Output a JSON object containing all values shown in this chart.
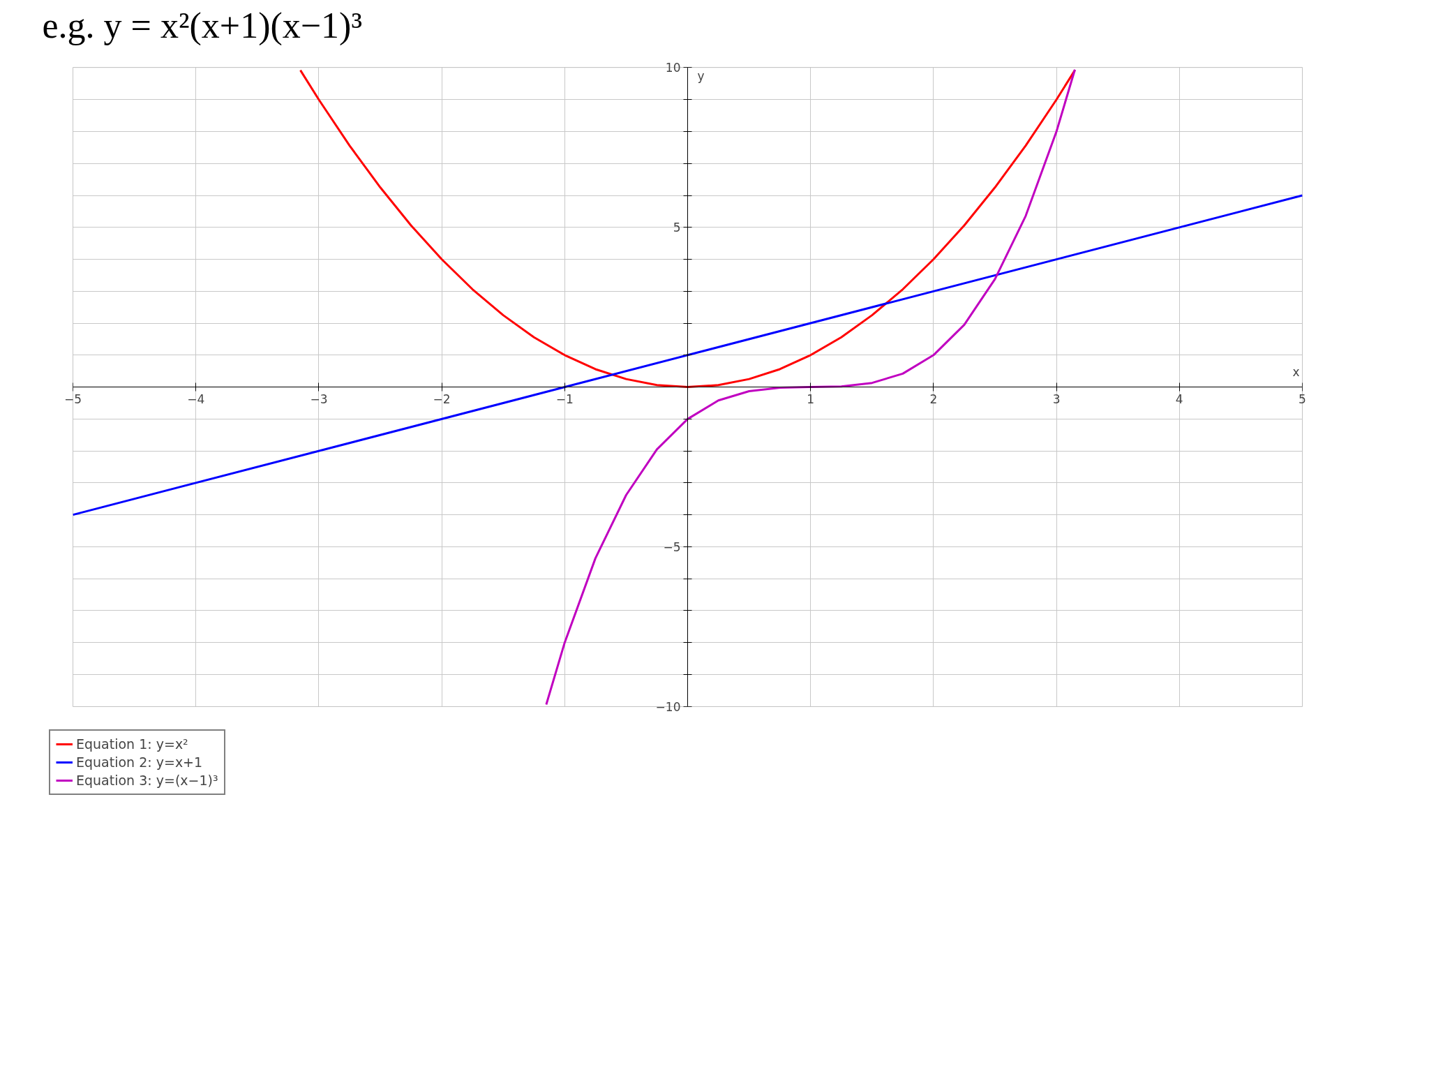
{
  "chart_data": {
    "type": "line",
    "title": "e.g. y = x²(x+1)(x−1)³",
    "xlabel": "x",
    "ylabel": "y",
    "xlim": [
      -5,
      5
    ],
    "ylim": [
      -10,
      10
    ],
    "xticks": [
      {
        "value": -5,
        "label": "−5"
      },
      {
        "value": -4,
        "label": "−4"
      },
      {
        "value": -3,
        "label": "−3"
      },
      {
        "value": -2,
        "label": "−2"
      },
      {
        "value": -1,
        "label": "−1"
      },
      {
        "value": 0,
        "label": null
      },
      1,
      2,
      3,
      4,
      5
    ],
    "yticks": [
      {
        "value": -10,
        "label": "−10"
      },
      {
        "value": -9,
        "label": null
      },
      {
        "value": -8,
        "label": null
      },
      {
        "value": -7,
        "label": null
      },
      {
        "value": -6,
        "label": null
      },
      {
        "value": -5,
        "label": "−5"
      },
      {
        "value": -4,
        "label": null
      },
      {
        "value": -3,
        "label": null
      },
      {
        "value": -2,
        "label": null
      },
      {
        "value": -1,
        "label": null
      },
      {
        "value": 0,
        "label": null
      },
      {
        "value": 1,
        "label": null
      },
      {
        "value": 2,
        "label": null
      },
      {
        "value": 3,
        "label": null
      },
      {
        "value": 4,
        "label": null
      },
      5,
      {
        "value": 6,
        "label": null
      },
      {
        "value": 7,
        "label": null
      },
      {
        "value": 8,
        "label": null
      },
      {
        "value": 9,
        "label": null
      },
      10
    ],
    "grid": true,
    "legend": "bottom",
    "line_style": "solid",
    "series": [
      {
        "name": "Equation 1: y=x²",
        "color": "#ff0000",
        "x": [
          -3.15,
          -3,
          -2.75,
          -2.5,
          -2.25,
          -2,
          -1.75,
          -1.5,
          -1.25,
          -1,
          -0.75,
          -0.5,
          -0.25,
          0,
          0.25,
          0.5,
          0.75,
          1,
          1.25,
          1.5,
          1.75,
          2,
          2.25,
          2.5,
          2.75,
          3,
          3.15
        ],
        "values": [
          9.92,
          9,
          7.56,
          6.25,
          5.06,
          4,
          3.06,
          2.25,
          1.56,
          1,
          0.56,
          0.25,
          0.06,
          0,
          0.06,
          0.25,
          0.56,
          1,
          1.56,
          2.25,
          3.06,
          4,
          5.06,
          6.25,
          7.56,
          9,
          9.92
        ]
      },
      {
        "name": "Equation 2: y=x+1",
        "color": "#0000ff",
        "x": [
          -5,
          0,
          5
        ],
        "values": [
          -4,
          1,
          6
        ]
      },
      {
        "name": "Equation 3: y=(x−1)³",
        "color": "#c000c0",
        "x": [
          -1.15,
          -1,
          -0.75,
          -0.5,
          -0.25,
          0,
          0.25,
          0.5,
          0.75,
          1,
          1.25,
          1.5,
          1.75,
          2,
          2.25,
          2.5,
          2.75,
          3,
          3.15
        ],
        "values": [
          -9.94,
          -8,
          -5.36,
          -3.38,
          -1.95,
          -1,
          -0.42,
          -0.13,
          -0.02,
          0,
          0.02,
          0.13,
          0.42,
          1,
          1.95,
          3.38,
          5.36,
          8,
          9.94
        ]
      }
    ]
  }
}
